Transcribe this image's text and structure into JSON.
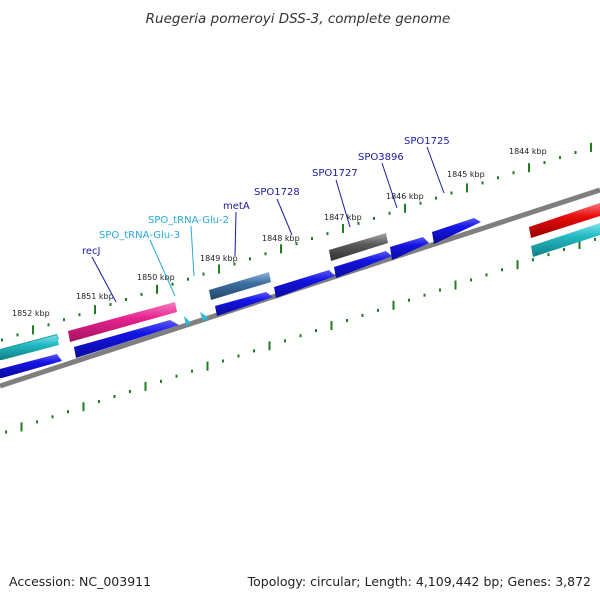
{
  "title": "Ruegeria pomeroyi DSS-3, complete genome",
  "footer": {
    "accession": "Accession: NC_003911",
    "summary": "Topology: circular; Length: 4,109,442 bp; Genes: 3,872"
  },
  "colors": {
    "backbone": "#7f7f7f",
    "ticks": "#1e7d1e",
    "cds": "#1414e6",
    "trna": "#2fb6d8",
    "cyan_feature": "#22b9c2",
    "pink_feature": "#e8238f",
    "steel_feature": "#3d6fa3",
    "gray_feature": "#5a5a5a",
    "red_feature": "#e60b0b",
    "label_dark": "#1a1aa0",
    "label_light": "#28a8d4"
  },
  "scale": {
    "kbp_labels": [
      "1852 kbp",
      "1851 kbp",
      "1850 kbp",
      "1849 kbp",
      "1848 kbp",
      "1847 kbp",
      "1846 kbp",
      "1845 kbp",
      "1844 kbp"
    ]
  },
  "genes": [
    {
      "name": "recJ",
      "color": "label_dark"
    },
    {
      "name": "SPO_tRNA-Glu-3",
      "color": "label_light"
    },
    {
      "name": "SPO_tRNA-Glu-2",
      "color": "label_light"
    },
    {
      "name": "metA",
      "color": "label_dark"
    },
    {
      "name": "SPO1728",
      "color": "label_dark"
    },
    {
      "name": "SPO1727",
      "color": "label_dark"
    },
    {
      "name": "SPO3896",
      "color": "label_dark"
    },
    {
      "name": "SPO1725",
      "color": "label_dark"
    }
  ]
}
